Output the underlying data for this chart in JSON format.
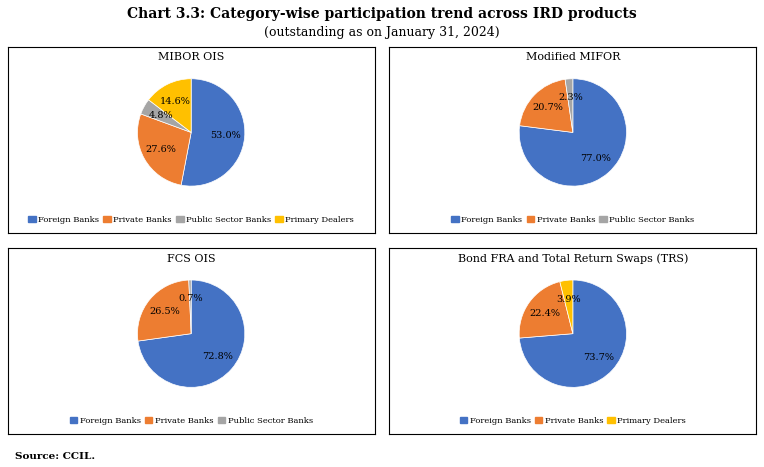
{
  "title": "Chart 3.3: Category-wise participation trend across IRD products",
  "subtitle": "(outstanding as on January 31, 2024)",
  "source": "Source: CCIL.",
  "colors": {
    "Foreign Banks": "#4472C4",
    "Private Banks": "#ED7D31",
    "Public Sector Banks": "#A5A5A5",
    "Primary Dealers": "#FFC000"
  },
  "charts": [
    {
      "title": "MIBOR OIS",
      "labels": [
        "Foreign Banks",
        "Private Banks",
        "Public Sector Banks",
        "Primary Dealers"
      ],
      "values": [
        53.0,
        27.6,
        4.8,
        14.6
      ],
      "startangle": 90,
      "counterclock": false,
      "legend_labels": [
        "Foreign Banks",
        "Private Banks",
        "Public Sector Banks",
        "Primary Dealers"
      ],
      "legend_ncol": 4
    },
    {
      "title": "Modified MIFOR",
      "labels": [
        "Foreign Banks",
        "Private Banks",
        "Public Sector Banks"
      ],
      "values": [
        77.0,
        20.7,
        2.3
      ],
      "startangle": 90,
      "counterclock": false,
      "legend_labels": [
        "Foreign Banks",
        "Private Banks",
        "Public Sector Banks"
      ],
      "legend_ncol": 3
    },
    {
      "title": "FCS OIS",
      "labels": [
        "Foreign Banks",
        "Private Banks",
        "Public Sector Banks"
      ],
      "values": [
        72.8,
        26.5,
        0.7
      ],
      "startangle": 90,
      "counterclock": false,
      "legend_labels": [
        "Foreign Banks",
        "Private Banks",
        "Public Sector Banks"
      ],
      "legend_ncol": 3
    },
    {
      "title": "Bond FRA and Total Return Swaps (TRS)",
      "labels": [
        "Foreign Banks",
        "Private Banks",
        "Primary Dealers"
      ],
      "values": [
        73.7,
        22.4,
        3.9
      ],
      "startangle": 90,
      "counterclock": false,
      "legend_labels": [
        "Foreign Banks",
        "Private Banks",
        "Primary Dealers"
      ],
      "legend_ncol": 3
    }
  ]
}
